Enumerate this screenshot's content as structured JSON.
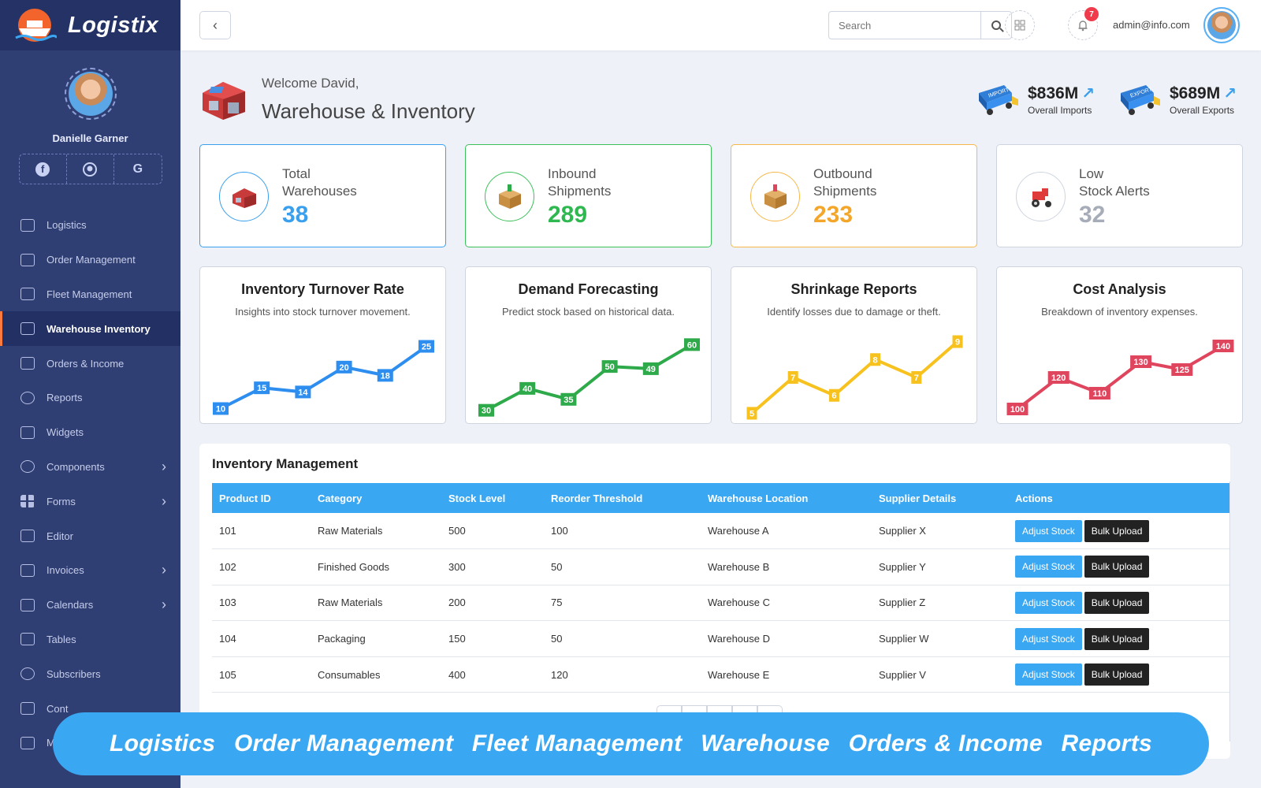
{
  "brand": {
    "name": "Logistix"
  },
  "profile": {
    "name": "Danielle Garner",
    "socials": [
      "facebook-icon",
      "github-icon",
      "google-icon"
    ]
  },
  "sidebar": {
    "items": [
      {
        "label": "Logistics",
        "icon": "bus-icon",
        "arrow": false
      },
      {
        "label": "Order Management",
        "icon": "truck-icon",
        "arrow": false
      },
      {
        "label": "Fleet Management",
        "icon": "car-icon",
        "arrow": false
      },
      {
        "label": "Warehouse Inventory",
        "icon": "box-icon",
        "arrow": false,
        "active": true
      },
      {
        "label": "Orders & Income",
        "icon": "monitor-icon",
        "arrow": false
      },
      {
        "label": "Reports",
        "icon": "pie-chart-icon",
        "arrow": false
      },
      {
        "label": "Widgets",
        "icon": "puzzle-icon",
        "arrow": false
      },
      {
        "label": "Components",
        "icon": "layers-icon",
        "arrow": true
      },
      {
        "label": "Forms",
        "icon": "grid-icon",
        "arrow": true
      },
      {
        "label": "Editor",
        "icon": "book-icon",
        "arrow": false
      },
      {
        "label": "Invoices",
        "icon": "invoice-icon",
        "arrow": true
      },
      {
        "label": "Calendars",
        "icon": "calendar-icon",
        "arrow": true
      },
      {
        "label": "Tables",
        "icon": "table-icon",
        "arrow": false
      },
      {
        "label": "Subscribers",
        "icon": "globe-icon",
        "arrow": false
      },
      {
        "label": "Cont",
        "icon": "robot-icon",
        "arrow": false
      },
      {
        "label": "M",
        "icon": "code-icon",
        "arrow": false
      }
    ]
  },
  "topbar": {
    "search_placeholder": "Search",
    "notification_count": "7",
    "user_email": "admin@info.com"
  },
  "header": {
    "welcome": "Welcome David,",
    "title": "Warehouse & Inventory",
    "imports": {
      "value": "$836M",
      "label": "Overall Imports",
      "truck_text": "IMPORT"
    },
    "exports": {
      "value": "$689M",
      "label": "Overall Exports",
      "truck_text": "EXPORT"
    }
  },
  "stats": [
    {
      "line1": "Total",
      "line2": "Warehouses",
      "value": "38",
      "color": "#3aa0ee",
      "border": "#3aa0ee",
      "icon": "warehouse-icon"
    },
    {
      "line1": "Inbound",
      "line2": "Shipments",
      "value": "289",
      "color": "#2eb84f",
      "border": "#3cc15a",
      "icon": "inbound-box-icon"
    },
    {
      "line1": "Outbound",
      "line2": "Shipments",
      "value": "233",
      "color": "#f4a62a",
      "border": "#f6b84a",
      "icon": "outbound-box-icon"
    },
    {
      "line1": "Low",
      "line2": "Stock Alerts",
      "value": "32",
      "color": "#a7adb8",
      "border": "#cfd5e0",
      "icon": "tractor-icon"
    }
  ],
  "chart_data": [
    {
      "type": "line",
      "title": "Inventory Turnover Rate",
      "subtitle": "Insights into stock turnover movement.",
      "values": [
        10,
        15,
        14,
        20,
        18,
        25
      ],
      "color": "#2e8ef0",
      "ylim": [
        8,
        27
      ]
    },
    {
      "type": "line",
      "title": "Demand Forecasting",
      "subtitle": "Predict stock based on historical data.",
      "values": [
        30,
        40,
        35,
        50,
        49,
        60
      ],
      "color": "#2eaa4a",
      "ylim": [
        27,
        63
      ]
    },
    {
      "type": "line",
      "title": "Shrinkage Reports",
      "subtitle": "Identify losses due to damage or theft.",
      "values": [
        5,
        7,
        6,
        8,
        7,
        9
      ],
      "color": "#f7c21e",
      "ylim": [
        4.8,
        9.2
      ]
    },
    {
      "type": "line",
      "title": "Cost Analysis",
      "subtitle": "Breakdown of inventory expenses.",
      "values": [
        100,
        120,
        110,
        130,
        125,
        140
      ],
      "color": "#e0455e",
      "ylim": [
        95,
        145
      ]
    }
  ],
  "inventory": {
    "title": "Inventory Management",
    "columns": [
      "Product ID",
      "Category",
      "Stock Level",
      "Reorder Threshold",
      "Warehouse Location",
      "Supplier Details",
      "Actions"
    ],
    "rows": [
      [
        "101",
        "Raw Materials",
        "500",
        "100",
        "Warehouse A",
        "Supplier X"
      ],
      [
        "102",
        "Finished Goods",
        "300",
        "50",
        "Warehouse B",
        "Supplier Y"
      ],
      [
        "103",
        "Raw Materials",
        "200",
        "75",
        "Warehouse C",
        "Supplier Z"
      ],
      [
        "104",
        "Packaging",
        "150",
        "50",
        "Warehouse D",
        "Supplier W"
      ],
      [
        "105",
        "Consumables",
        "400",
        "120",
        "Warehouse E",
        "Supplier V"
      ]
    ],
    "actions": {
      "adjust": "Adjust Stock",
      "bulk": "Bulk Upload"
    }
  },
  "banner": {
    "items": [
      "Logistics",
      "Order Management",
      "Fleet Management",
      "Warehouse",
      "Orders & Income",
      "Reports"
    ]
  }
}
